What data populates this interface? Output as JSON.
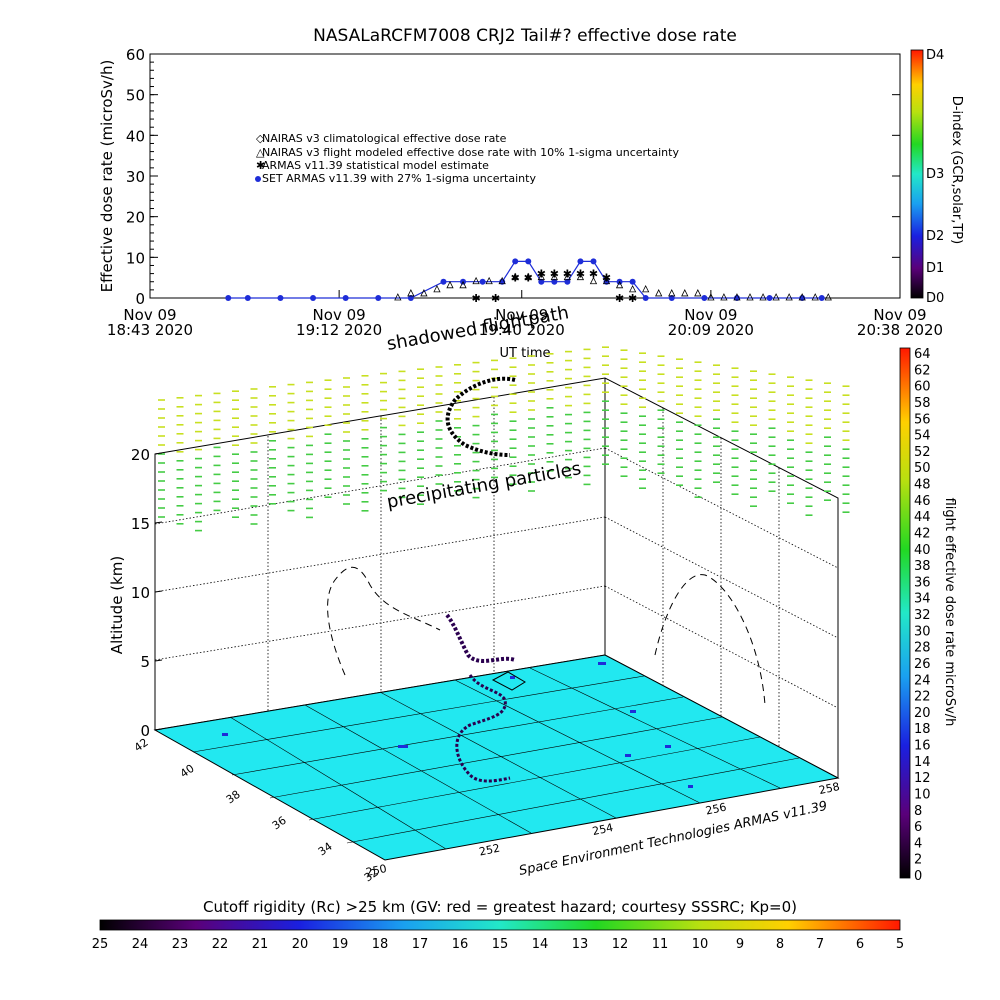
{
  "chart_data": [
    {
      "type": "scatter",
      "title": "NASALaRCFM7008  CRJ2 Tail#? effective dose rate",
      "ylabel": "Effective dose rate (microSv/h)",
      "xlabel": "UT time",
      "ylim": [
        0,
        60
      ],
      "y_ticks": [
        "0",
        "10",
        "20",
        "30",
        "40",
        "50",
        "60"
      ],
      "x_ticks": [
        {
          "line1": "Nov 09",
          "line2": "18:43 2020"
        },
        {
          "line1": "Nov 09",
          "line2": "19:12 2020"
        },
        {
          "line1": "Nov 09",
          "line2": "19:40 2020"
        },
        {
          "line1": "Nov 09",
          "line2": "20:09 2020"
        },
        {
          "line1": "Nov 09",
          "line2": "20:38 2020"
        }
      ],
      "legend": [
        "NAIRAS v3 climatological effective dose rate",
        "NAIRAS v3 flight modeled effective dose rate with 10% 1-sigma uncertainty",
        "ARMAS v11.39 statistical model estimate",
        "SET ARMAS v11.39 with 27% 1-sigma uncertainty"
      ],
      "legend_position": "upper-left",
      "right_axis": {
        "label": "D-index (GCR,solar,TP)",
        "ticks": [
          "D0",
          "D1",
          "D2",
          "D3",
          "D4"
        ]
      },
      "x_minutes": [
        0,
        29,
        57,
        86,
        115
      ],
      "series": [
        {
          "name": "SET ARMAS v11.39 with 27% 1-sigma uncertainty",
          "color": "#1e2dd8",
          "values": [
            [
              12,
              0
            ],
            [
              15,
              0
            ],
            [
              20,
              0
            ],
            [
              25,
              0
            ],
            [
              30,
              0
            ],
            [
              35,
              0
            ],
            [
              40,
              0
            ],
            [
              45,
              4
            ],
            [
              48,
              4
            ],
            [
              51,
              4
            ],
            [
              54,
              4
            ],
            [
              56,
              9
            ],
            [
              58,
              9
            ],
            [
              60,
              4
            ],
            [
              62,
              4
            ],
            [
              64,
              4
            ],
            [
              66,
              9
            ],
            [
              68,
              9
            ],
            [
              70,
              4
            ],
            [
              72,
              4
            ],
            [
              74,
              4
            ],
            [
              76,
              0
            ],
            [
              80,
              0
            ],
            [
              85,
              0
            ],
            [
              90,
              0
            ],
            [
              95,
              0
            ],
            [
              100,
              0
            ],
            [
              103,
              0
            ]
          ]
        },
        {
          "name": "ARMAS v11.39 statistical model estimate",
          "color": "#44cc44",
          "values": [
            [
              50,
              0
            ],
            [
              53,
              0
            ],
            [
              56,
              5
            ],
            [
              58,
              5
            ],
            [
              60,
              6
            ],
            [
              62,
              6
            ],
            [
              64,
              6
            ],
            [
              66,
              6
            ],
            [
              68,
              6
            ],
            [
              70,
              5
            ],
            [
              72,
              0
            ],
            [
              74,
              0
            ]
          ]
        },
        {
          "name": "NAIRAS v3 flight modeled effective dose rate with 10% 1-sigma uncertainty",
          "color": "#000000",
          "values": [
            [
              38,
              0
            ],
            [
              40,
              1
            ],
            [
              42,
              1
            ],
            [
              44,
              2
            ],
            [
              46,
              3
            ],
            [
              48,
              3
            ],
            [
              50,
              4
            ],
            [
              52,
              4
            ],
            [
              54,
              4
            ],
            [
              56,
              5
            ],
            [
              58,
              5
            ],
            [
              60,
              5
            ],
            [
              62,
              5
            ],
            [
              64,
              5
            ],
            [
              66,
              5
            ],
            [
              68,
              4
            ],
            [
              70,
              4
            ],
            [
              72,
              3
            ],
            [
              74,
              2
            ],
            [
              76,
              2
            ],
            [
              78,
              1
            ],
            [
              80,
              1
            ],
            [
              82,
              1
            ],
            [
              84,
              1
            ],
            [
              86,
              0
            ],
            [
              88,
              0
            ],
            [
              90,
              0
            ],
            [
              92,
              0
            ],
            [
              94,
              0
            ],
            [
              96,
              0
            ],
            [
              98,
              0
            ],
            [
              100,
              0
            ],
            [
              102,
              0
            ],
            [
              104,
              0
            ]
          ]
        }
      ]
    },
    {
      "type": "3d-scatter",
      "zlabel": "Altitude (km)",
      "z_ticks": [
        "0",
        "5",
        "10",
        "15",
        "20"
      ],
      "lat_ticks": [
        "32",
        "34",
        "36",
        "38",
        "40",
        "42"
      ],
      "lon_ticks": [
        "250",
        "252",
        "254",
        "256",
        "258"
      ],
      "annotations": [
        "shadowed flightpath",
        "precipitating particles"
      ],
      "credit": "Space Environment Technologies ARMAS v11.39",
      "colorbar": {
        "label": "flight effective dose rate microSv/h",
        "ticks": [
          "0",
          "2",
          "4",
          "6",
          "8",
          "10",
          "12",
          "14",
          "16",
          "18",
          "20",
          "22",
          "24",
          "26",
          "28",
          "30",
          "32",
          "34",
          "36",
          "38",
          "40",
          "42",
          "44",
          "46",
          "48",
          "50",
          "52",
          "54",
          "56",
          "58",
          "60",
          "62",
          "64"
        ]
      },
      "surface_color": "#22e8f0",
      "flight_color": "#2b0050",
      "particles_color_high": "#c8e020",
      "particles_color_low": "#44cc44"
    },
    {
      "type": "colorbar",
      "title": "Cutoff rigidity (Rc) >25 km (GV: red = greatest hazard; courtesy SSSRC; Kp=0)",
      "ticks": [
        "25",
        "24",
        "23",
        "22",
        "21",
        "20",
        "19",
        "18",
        "17",
        "16",
        "15",
        "14",
        "13",
        "12",
        "11",
        "10",
        "9",
        "8",
        "7",
        "6",
        "5"
      ]
    }
  ]
}
